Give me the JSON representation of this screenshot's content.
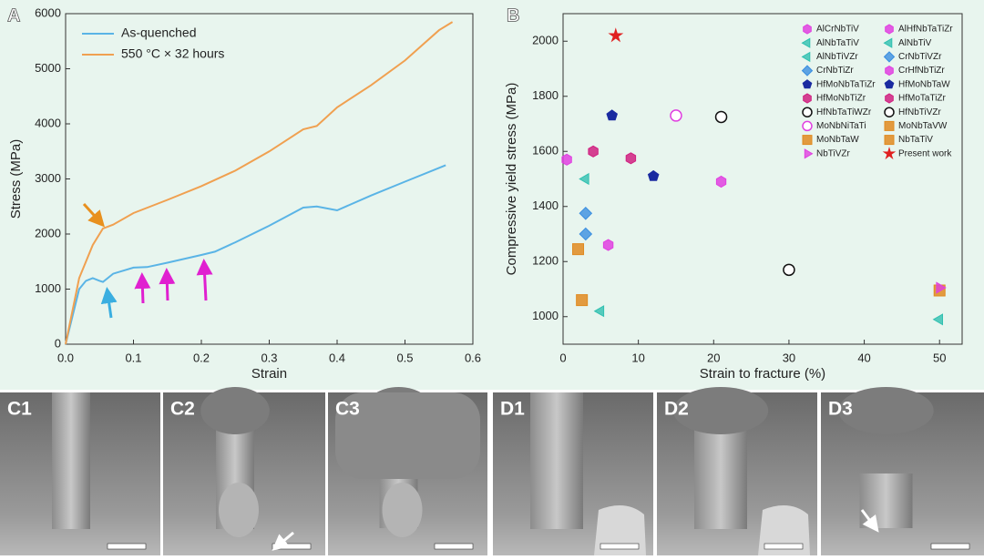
{
  "chart_data": [
    {
      "type": "line",
      "panel_label": "A",
      "x_label": "Strain",
      "y_label": "Stress (MPa)",
      "xlim": [
        0,
        0.6
      ],
      "xticks": [
        {
          "value": 0,
          "label": "0.0"
        },
        0.1,
        0.2,
        0.3,
        0.4,
        0.5,
        0.6
      ],
      "ylim": [
        0,
        6000
      ],
      "yticks": [
        0,
        1000,
        2000,
        3000,
        4000,
        5000,
        6000
      ],
      "legend": "upper left",
      "series": [
        {
          "name": "As-quenched",
          "color": "#5ab4e6",
          "x": [
            0,
            0.02,
            0.03,
            0.04,
            0.05,
            0.055,
            0.07,
            0.1,
            0.12,
            0.15,
            0.2,
            0.22,
            0.25,
            0.3,
            0.35,
            0.37,
            0.4,
            0.45,
            0.5,
            0.55,
            0.56
          ],
          "values": [
            0,
            1000,
            1150,
            1200,
            1150,
            1130,
            1280,
            1390,
            1400,
            1480,
            1620,
            1680,
            1850,
            2150,
            2480,
            2500,
            2430,
            2700,
            2950,
            3200,
            3250
          ]
        },
        {
          "name": "550 °C × 32 hours",
          "color": "#f0a050",
          "x": [
            0,
            0.02,
            0.04,
            0.055,
            0.07,
            0.1,
            0.15,
            0.2,
            0.25,
            0.3,
            0.35,
            0.37,
            0.4,
            0.45,
            0.5,
            0.55,
            0.57
          ],
          "values": [
            0,
            1200,
            1800,
            2100,
            2170,
            2380,
            2620,
            2870,
            3150,
            3500,
            3900,
            3960,
            4300,
            4700,
            5150,
            5700,
            5850
          ]
        }
      ]
    },
    {
      "type": "scatter",
      "panel_label": "B",
      "x_label": "Strain to fracture (%)",
      "y_label": "Compressive yield stress (MPa)",
      "xlim": [
        0,
        53
      ],
      "xticks": [
        0,
        10,
        20,
        30,
        40,
        50
      ],
      "ylim": [
        900,
        2100
      ],
      "yticks": [
        1000,
        1200,
        1400,
        1600,
        1800,
        2000
      ],
      "legend": "upper right",
      "series": [
        {
          "name": "AlCrNbTiV",
          "color": "#e040e0",
          "marker": "hexagon",
          "x": [
            21
          ],
          "values": [
            1490
          ]
        },
        {
          "name": "AlHfNbTaTiZr",
          "color": "#e040e0",
          "marker": "hexagon",
          "x": [
            0.5
          ],
          "values": [
            1570
          ]
        },
        {
          "name": "AlNbTaTiV",
          "color": "#30c0b0",
          "marker": "triangle-left",
          "x": [
            3
          ],
          "values": [
            1500
          ]
        },
        {
          "name": "AlNbTiV",
          "color": "#30c0b0",
          "marker": "triangle-left",
          "x": [
            50
          ],
          "values": [
            990
          ]
        },
        {
          "name": "AlNbTiVZr",
          "color": "#30c0b0",
          "marker": "triangle-left",
          "x": [
            5
          ],
          "values": [
            1020
          ]
        },
        {
          "name": "CrNbTiVZr",
          "color": "#3a8ee0",
          "marker": "diamond",
          "x": [
            3
          ],
          "values": [
            1300
          ]
        },
        {
          "name": "CrNbTiZr",
          "color": "#3a8ee0",
          "marker": "diamond",
          "x": [
            3
          ],
          "values": [
            1375
          ]
        },
        {
          "name": "CrHfNbTiZr",
          "color": "#e040e0",
          "marker": "hexagon",
          "x": [
            6
          ],
          "values": [
            1260
          ]
        },
        {
          "name": "HfMoNbTaTiZr",
          "color": "#1a2aa0",
          "marker": "pentagon",
          "x": [
            6.5
          ],
          "values": [
            1730
          ]
        },
        {
          "name": "HfMoNbTaW",
          "color": "#1a2aa0",
          "marker": "pentagon",
          "x": [
            12
          ],
          "values": [
            1510
          ]
        },
        {
          "name": "HfMoNbTiZr",
          "color": "#d02080",
          "marker": "hexagon",
          "x": [
            9
          ],
          "values": [
            1575
          ]
        },
        {
          "name": "HfMoTaTiZr",
          "color": "#d02080",
          "marker": "hexagon",
          "x": [
            4
          ],
          "values": [
            1600
          ]
        },
        {
          "name": "HfNbTaTiWZr",
          "color": "#111111",
          "marker": "circle",
          "x": [
            21
          ],
          "values": [
            1725
          ]
        },
        {
          "name": "HfNbTiVZr",
          "color": "#111111",
          "marker": "circle",
          "x": [
            30
          ],
          "values": [
            1170
          ]
        },
        {
          "name": "MoNbNiTaTi",
          "color": "#e040e0",
          "marker": "circle",
          "x": [
            15
          ],
          "values": [
            1730
          ]
        },
        {
          "name": "MoNbTaVW",
          "color": "#e08a20",
          "marker": "square",
          "x": [
            2
          ],
          "values": [
            1245
          ]
        },
        {
          "name": "MoNbTaW",
          "color": "#e08a20",
          "marker": "square",
          "x": [
            2.5
          ],
          "values": [
            1060
          ]
        },
        {
          "name": "NbTaTiV",
          "color": "#e08a20",
          "marker": "square",
          "x": [
            50
          ],
          "values": [
            1095
          ]
        },
        {
          "name": "NbTiVZr",
          "color": "#e040e0",
          "marker": "triangle-right",
          "x": [
            50
          ],
          "values": [
            1105
          ]
        },
        {
          "name": "Present work",
          "color": "#e02020",
          "marker": "star",
          "x": [
            7
          ],
          "values": [
            2020
          ]
        }
      ]
    }
  ],
  "images": {
    "panels": [
      {
        "label": "C1"
      },
      {
        "label": "C2"
      },
      {
        "label": "C3"
      },
      {
        "label": "D1"
      },
      {
        "label": "D2"
      },
      {
        "label": "D3"
      }
    ]
  }
}
